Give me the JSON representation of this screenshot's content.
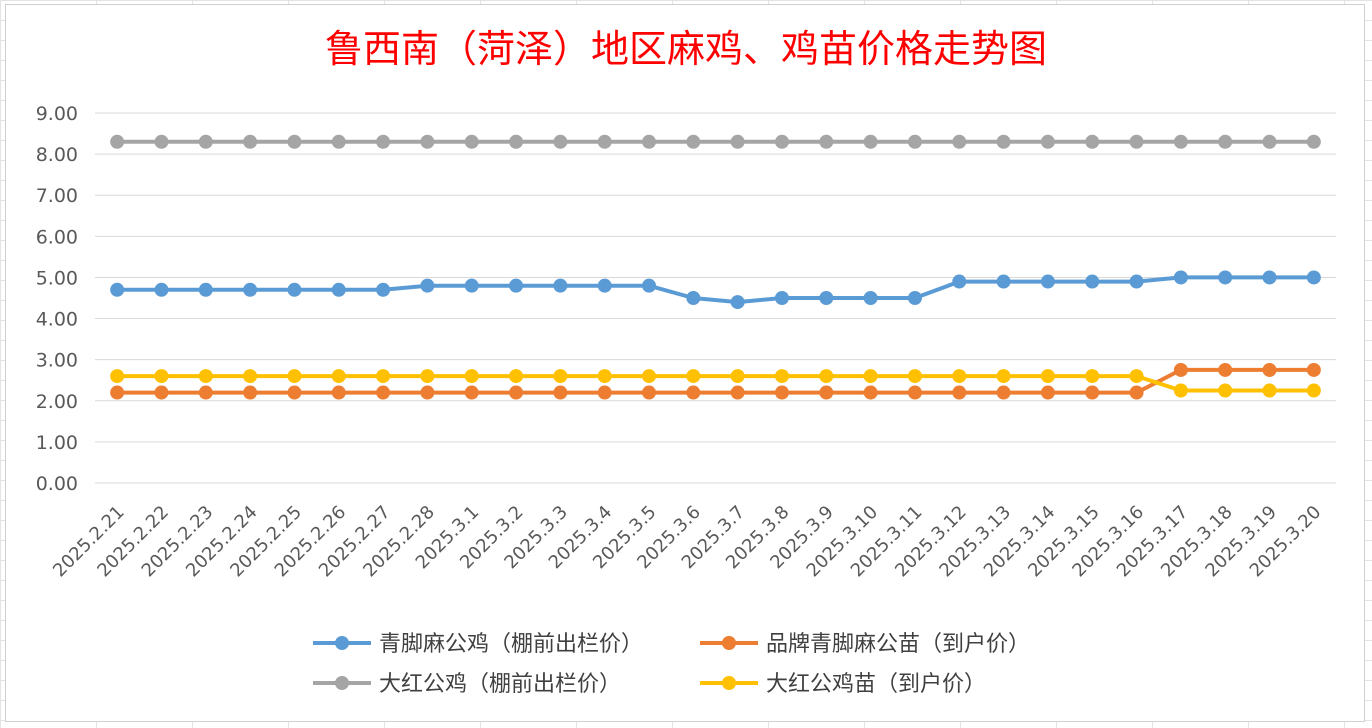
{
  "chart_data": {
    "type": "line",
    "title": "鲁西南（菏泽）地区麻鸡、鸡苗价格走势图",
    "title_color": "#ff0000",
    "xlabel": "",
    "ylabel": "",
    "ylim": [
      0,
      9
    ],
    "y_ticks": [
      "0.00",
      "1.00",
      "2.00",
      "3.00",
      "4.00",
      "5.00",
      "6.00",
      "7.00",
      "8.00",
      "9.00"
    ],
    "grid": true,
    "legend_position": "bottom",
    "categories": [
      "2025.2.21",
      "2025.2.22",
      "2025.2.23",
      "2025.2.24",
      "2025.2.25",
      "2025.2.26",
      "2025.2.27",
      "2025.2.28",
      "2025.3.1",
      "2025.3.2",
      "2025.3.3",
      "2025.3.4",
      "2025.3.5",
      "2025.3.6",
      "2025.3.7",
      "2025.3.8",
      "2025.3.9",
      "2025.3.10",
      "2025.3.11",
      "2025.3.12",
      "2025.3.13",
      "2025.3.14",
      "2025.3.15",
      "2025.3.16",
      "2025.3.17",
      "2025.3.18",
      "2025.3.19",
      "2025.3.20"
    ],
    "series": [
      {
        "name": "青脚麻公鸡（棚前出栏价）",
        "color": "#5b9bd5",
        "values": [
          4.7,
          4.7,
          4.7,
          4.7,
          4.7,
          4.7,
          4.7,
          4.8,
          4.8,
          4.8,
          4.8,
          4.8,
          4.8,
          4.5,
          4.4,
          4.5,
          4.5,
          4.5,
          4.5,
          4.9,
          4.9,
          4.9,
          4.9,
          4.9,
          5.0,
          5.0,
          5.0,
          5.0
        ]
      },
      {
        "name": "品牌青脚麻公苗（到户价）",
        "color": "#ed7d31",
        "values": [
          2.2,
          2.2,
          2.2,
          2.2,
          2.2,
          2.2,
          2.2,
          2.2,
          2.2,
          2.2,
          2.2,
          2.2,
          2.2,
          2.2,
          2.2,
          2.2,
          2.2,
          2.2,
          2.2,
          2.2,
          2.2,
          2.2,
          2.2,
          2.2,
          2.75,
          2.75,
          2.75,
          2.75
        ]
      },
      {
        "name": "大红公鸡（棚前出栏价）",
        "color": "#a5a5a5",
        "values": [
          8.3,
          8.3,
          8.3,
          8.3,
          8.3,
          8.3,
          8.3,
          8.3,
          8.3,
          8.3,
          8.3,
          8.3,
          8.3,
          8.3,
          8.3,
          8.3,
          8.3,
          8.3,
          8.3,
          8.3,
          8.3,
          8.3,
          8.3,
          8.3,
          8.3,
          8.3,
          8.3,
          8.3
        ]
      },
      {
        "name": "大红公鸡苗（到户价）",
        "color": "#ffc000",
        "values": [
          2.6,
          2.6,
          2.6,
          2.6,
          2.6,
          2.6,
          2.6,
          2.6,
          2.6,
          2.6,
          2.6,
          2.6,
          2.6,
          2.6,
          2.6,
          2.6,
          2.6,
          2.6,
          2.6,
          2.6,
          2.6,
          2.6,
          2.6,
          2.6,
          2.25,
          2.25,
          2.25,
          2.25
        ]
      }
    ]
  }
}
